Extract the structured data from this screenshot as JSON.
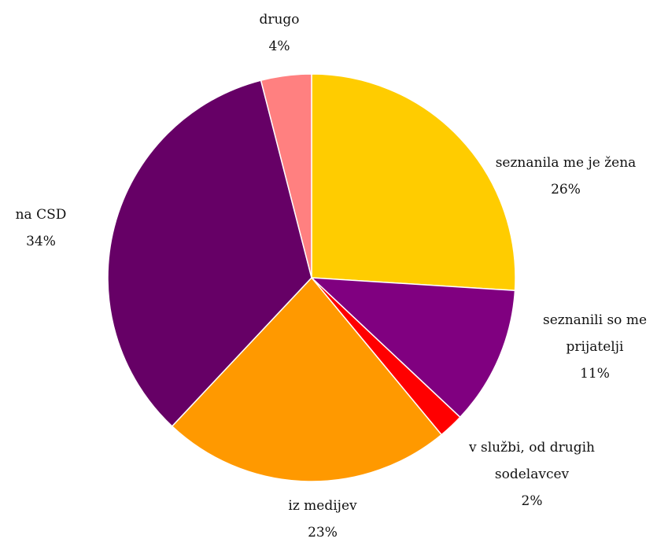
{
  "chart_data": {
    "type": "pie",
    "start_angle_deg": 0,
    "direction": "clockwise",
    "slices": [
      {
        "label": "seznanila me je žena",
        "value": 26,
        "value_label": "26%",
        "color": "#FFCC00"
      },
      {
        "label": "seznanili so me prijatelji",
        "value": 11,
        "value_label": "11%",
        "color": "#800080"
      },
      {
        "label": "v službi, od drugih sodelavcev",
        "value": 2,
        "value_label": "2%",
        "color": "#FF0000"
      },
      {
        "label": "iz medijev",
        "value": 23,
        "value_label": "23%",
        "color": "#FF9900"
      },
      {
        "label": "na CSD",
        "value": 34,
        "value_label": "34%",
        "color": "#660066"
      },
      {
        "label": "drugo",
        "value": 4,
        "value_label": "4%",
        "color": "#FF8080"
      }
    ]
  }
}
